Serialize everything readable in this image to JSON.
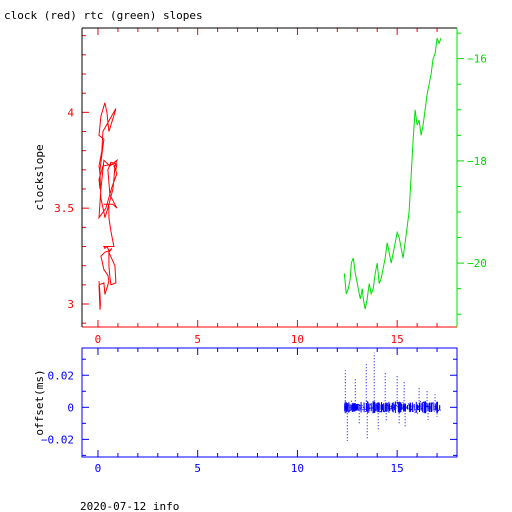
{
  "title": "clock (red) rtc (green) slopes",
  "footer": "2020-07-12 info",
  "colors": {
    "clock": "#ff0000",
    "rtc": "#00dd00",
    "offset": "#0000ff",
    "text": "#000000"
  },
  "chart_data": [
    {
      "type": "line",
      "title": "clock (red) rtc (green) slopes",
      "ylabel": "clockslope",
      "xlim": [
        -0.8,
        18
      ],
      "ylim_left": [
        2.88,
        4.44
      ],
      "ylim_right": [
        -21.25,
        -15.4
      ],
      "x_ticks": [
        0,
        5,
        10,
        15
      ],
      "y_ticks_left": [
        3,
        3.5,
        4
      ],
      "y_ticks_right": [
        -20,
        -18,
        -16
      ],
      "series": [
        {
          "axis": "left",
          "color": "#ff0000",
          "x": [
            0.05,
            0.1,
            0.12,
            0.1,
            0.05,
            0.3,
            0.35,
            0.5,
            0.55,
            0.5,
            0.3,
            0.15,
            0.35,
            0.6,
            0.7,
            0.55,
            0.85,
            0.9,
            0.65,
            0.6,
            0.55,
            0.55,
            0.45,
            0.45,
            0.35,
            0.3,
            0.7,
            0.8,
            0.65,
            0.55,
            0.55,
            0.5,
            0.3,
            0.35,
            0.75,
            0.95,
            0.6,
            0.5,
            0.65,
            0.95,
            0.9,
            0.8,
            0.95,
            0.7,
            0.4,
            0.05,
            0.15,
            0.25,
            0.3,
            0.6,
            0.95,
            0.85,
            0.8,
            0.75,
            0.5,
            0.35,
            0.3,
            0.15,
            0.1,
            0.05,
            0.2,
            0.25,
            0.9,
            0.85,
            0.55,
            0.45,
            0.35,
            0.15,
            0.05,
            0.3,
            0.25,
            0.1,
            0.1,
            0.05,
            0.25,
            0.7,
            0.9
          ],
          "y": [
            3.12,
            3.05,
            3.0,
            2.97,
            3.1,
            3.11,
            3.05,
            3.1,
            3.12,
            3.15,
            3.18,
            3.25,
            3.27,
            3.28,
            3.29,
            3.27,
            3.2,
            3.11,
            3.1,
            3.14,
            3.2,
            3.28,
            3.3,
            3.3,
            3.29,
            3.3,
            3.3,
            3.3,
            3.38,
            3.45,
            3.51,
            3.52,
            3.52,
            3.52,
            3.52,
            3.5,
            3.57,
            3.7,
            3.74,
            3.73,
            3.7,
            3.72,
            3.68,
            3.61,
            3.5,
            3.45,
            3.6,
            3.7,
            3.75,
            3.72,
            3.75,
            3.72,
            3.65,
            3.6,
            3.5,
            3.45,
            3.48,
            3.55,
            3.68,
            3.72,
            3.8,
            3.9,
            4.02,
            4.0,
            3.9,
            4.0,
            4.05,
            3.98,
            3.88,
            3.86,
            3.82,
            3.7,
            3.6,
            3.65,
            3.72,
            3.73,
            3.72
          ]
        },
        {
          "axis": "right",
          "color": "#00dd00",
          "x": [
            12.35,
            12.45,
            12.55,
            12.65,
            12.7,
            12.8,
            12.9,
            13.0,
            13.1,
            13.15,
            13.25,
            13.3,
            13.4,
            13.5,
            13.6,
            13.7,
            13.8,
            13.9,
            14.0,
            14.1,
            14.2,
            14.3,
            14.4,
            14.5,
            14.6,
            14.7,
            14.8,
            14.9,
            15.0,
            15.1,
            15.2,
            15.3,
            15.4,
            15.5,
            15.6,
            15.7,
            15.8,
            15.9,
            16.0,
            16.1,
            16.2,
            16.3,
            16.4,
            16.5,
            16.6,
            16.7,
            16.8,
            16.9,
            17.0,
            17.1,
            17.2
          ],
          "y": [
            -20.2,
            -20.6,
            -20.5,
            -20.3,
            -20.0,
            -19.9,
            -20.2,
            -20.4,
            -20.6,
            -20.7,
            -20.5,
            -20.7,
            -20.9,
            -20.7,
            -20.4,
            -20.6,
            -20.5,
            -20.2,
            -20.0,
            -20.4,
            -20.3,
            -20.1,
            -19.9,
            -19.6,
            -19.8,
            -20.0,
            -19.8,
            -19.6,
            -19.4,
            -19.5,
            -19.7,
            -19.9,
            -19.6,
            -19.3,
            -19.0,
            -18.3,
            -17.6,
            -17.0,
            -17.3,
            -17.2,
            -17.5,
            -17.3,
            -17.0,
            -16.7,
            -16.5,
            -16.3,
            -16.0,
            -15.9,
            -15.6,
            -15.7,
            -15.6
          ]
        }
      ]
    },
    {
      "type": "scatter",
      "ylabel": "offset(ms)",
      "xlim": [
        -0.8,
        18
      ],
      "ylim": [
        -0.031,
        0.037
      ],
      "x_ticks": [
        0,
        5,
        10,
        15
      ],
      "y_ticks": [
        -0.02,
        0,
        0.02
      ],
      "y_tick_labels": [
        "−0.02",
        "0",
        "0.02"
      ],
      "series": [
        {
          "color": "#0000ff",
          "x_start": 12.35,
          "x_end": 17.15,
          "band": 0.003,
          "spikes": [
            [
              12.4,
              0.023
            ],
            [
              12.5,
              -0.021
            ],
            [
              12.9,
              0.018
            ],
            [
              13.1,
              -0.01
            ],
            [
              13.45,
              0.028
            ],
            [
              13.5,
              -0.02
            ],
            [
              13.85,
              0.034
            ],
            [
              14.05,
              -0.015
            ],
            [
              14.4,
              0.022
            ],
            [
              14.45,
              -0.009
            ],
            [
              15.0,
              0.02
            ],
            [
              15.1,
              -0.01
            ],
            [
              15.35,
              0.016
            ],
            [
              15.4,
              -0.013
            ],
            [
              16.1,
              0.012
            ],
            [
              16.5,
              0.01
            ],
            [
              16.55,
              -0.008
            ],
            [
              16.9,
              0.008
            ],
            [
              17.0,
              -0.006
            ]
          ]
        }
      ]
    }
  ]
}
